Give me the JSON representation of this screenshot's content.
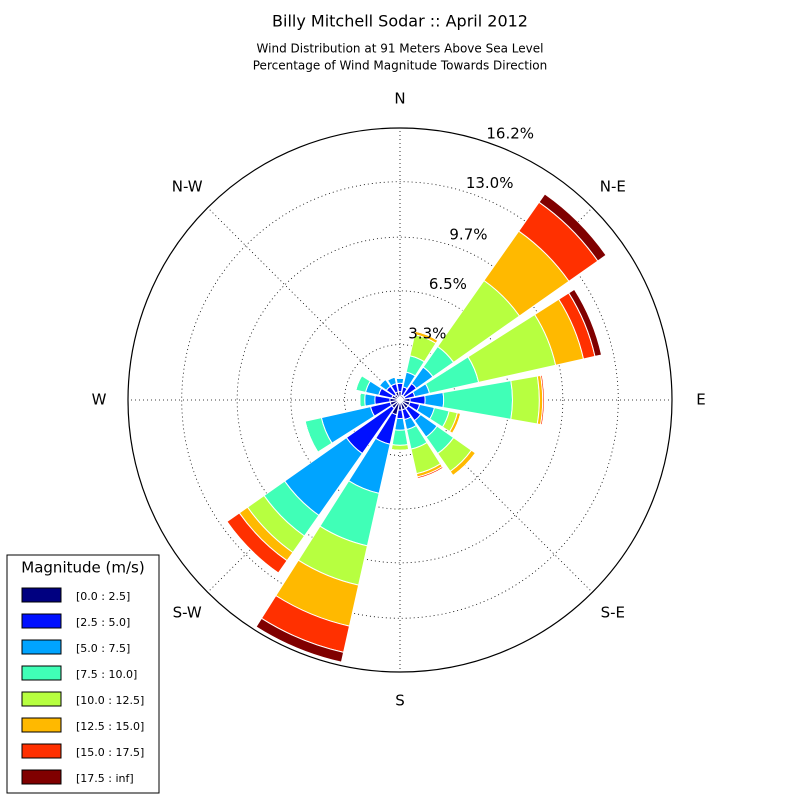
{
  "chart_data": {
    "type": "windrose",
    "title": "Billy Mitchell Sodar :: April 2012",
    "subtitle": [
      "Wind Distribution at 91 Meters Above Sea Level",
      "Percentage of Wind Magnitude Towards Direction"
    ],
    "categories": [
      "N",
      null,
      "N-E",
      null,
      "E",
      null,
      "S-E",
      null,
      "S",
      null,
      "S-W",
      null,
      "W",
      null,
      "N-W",
      null
    ],
    "rlim": [
      0,
      16.2
    ],
    "rticks": [
      {
        "value": 3.3,
        "label": "3.3%"
      },
      {
        "value": 6.5,
        "label": "6.5%"
      },
      {
        "value": 9.7,
        "label": "9.7%"
      },
      {
        "value": 13.0,
        "label": "13.0%"
      },
      {
        "value": 16.2,
        "label": "16.2%"
      }
    ],
    "grid": true,
    "legend_title": "Magnitude (m/s)",
    "legend_position": "lower-left",
    "series": [
      {
        "name": "[0.0 : 2.5]",
        "color": "#000080",
        "values": [
          0.5,
          0.3,
          0.3,
          0.3,
          0.6,
          0.6,
          0.6,
          0.6,
          0.6,
          0.9,
          0.6,
          0.6,
          0.6,
          0.5,
          0.4,
          0.5
        ]
      },
      {
        "name": "[2.5 : 5.0]",
        "color": "#0010ff",
        "values": [
          0.5,
          0.5,
          0.9,
          0.6,
          0.9,
          0.6,
          0.9,
          0.6,
          0.5,
          1.8,
          3.3,
          1.2,
          0.9,
          0.8,
          0.6,
          0.5
        ]
      },
      {
        "name": "[5.0 : 7.5]",
        "color": "#00a4ff",
        "values": [
          0.3,
          0.9,
          1.2,
          0.9,
          1.1,
          0.9,
          1.2,
          0.6,
          0.7,
          3.0,
          4.5,
          3.0,
          0.6,
          0.8,
          0.5,
          0.4
        ]
      },
      {
        "name": "[7.5 : 10.0]",
        "color": "#40ffb7",
        "values": [
          0,
          1.0,
          1.5,
          3.0,
          4.1,
          0.9,
          1.2,
          1.2,
          0.9,
          3.2,
          1.5,
          1.0,
          0.3,
          0.6,
          0,
          0
        ]
      },
      {
        "name": "[10.0 : 12.5]",
        "color": "#b7ff40",
        "values": [
          0,
          1.3,
          4.8,
          4.7,
          1.6,
          0.5,
          1.3,
          1.5,
          0.3,
          2.4,
          1.2,
          0,
          0,
          0,
          0,
          0
        ]
      },
      {
        "name": "[12.5 : 15.0]",
        "color": "#ffb900",
        "values": [
          0,
          0.2,
          3.6,
          1.7,
          0.2,
          0.2,
          0.3,
          0.2,
          0,
          2.5,
          0.6,
          0,
          0,
          0,
          0,
          0
        ]
      },
      {
        "name": "[15.0 : 17.5]",
        "color": "#ff3000",
        "values": [
          0,
          0,
          2.1,
          0.7,
          0.1,
          0,
          0,
          0.1,
          0,
          1.6,
          0.9,
          0,
          0,
          0,
          0,
          0
        ]
      },
      {
        "name": "[17.5 : inf]",
        "color": "#800000",
        "values": [
          0,
          0,
          0.6,
          0.4,
          0,
          0,
          0,
          0,
          0,
          0.6,
          0,
          0,
          0,
          0,
          0,
          0
        ]
      }
    ]
  }
}
